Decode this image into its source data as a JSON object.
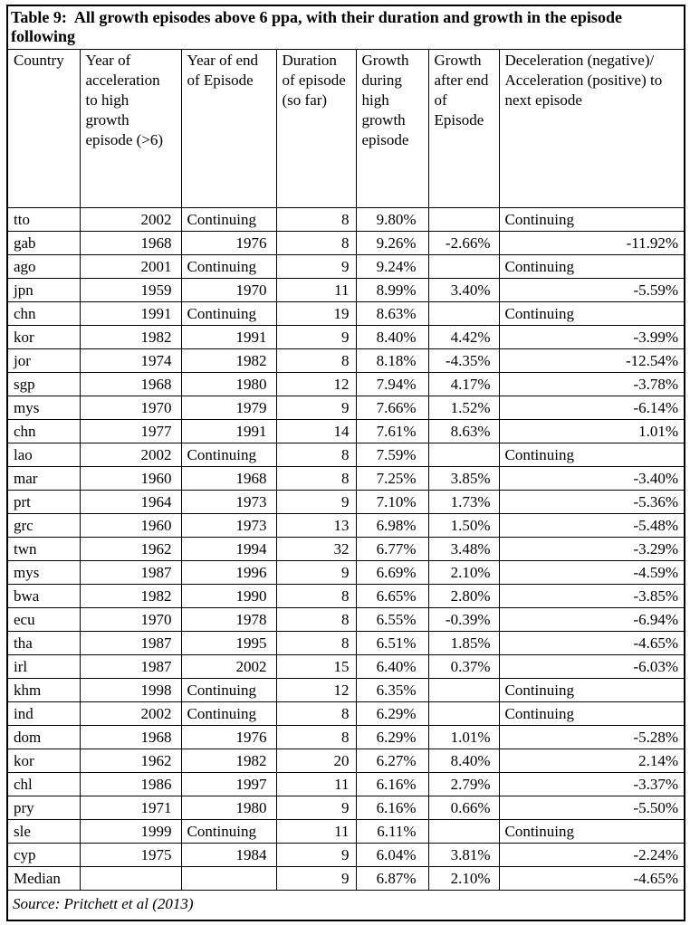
{
  "table": {
    "title": "Table 9:  All growth episodes above 6 ppa, with their duration and growth in the episode following",
    "columns": [
      "Country",
      "Year of acceleration to high growth episode (>6)",
      "Year of end of Episode",
      "Duration of episode (so far)",
      "Growth during high growth episode",
      "Growth after end of Episode",
      "Deceleration (negative)/ Acceleration (positive) to next episode"
    ],
    "rows": [
      [
        "tto",
        "2002",
        "Continuing",
        "8",
        "9.80%",
        "",
        "Continuing"
      ],
      [
        "gab",
        "1968",
        "1976",
        "8",
        "9.26%",
        "-2.66%",
        "-11.92%"
      ],
      [
        "ago",
        "2001",
        "Continuing",
        "9",
        "9.24%",
        "",
        "Continuing"
      ],
      [
        "jpn",
        "1959",
        "1970",
        "11",
        "8.99%",
        "3.40%",
        "-5.59%"
      ],
      [
        "chn",
        "1991",
        "Continuing",
        "19",
        "8.63%",
        "",
        "Continuing"
      ],
      [
        "kor",
        "1982",
        "1991",
        "9",
        "8.40%",
        "4.42%",
        "-3.99%"
      ],
      [
        "jor",
        "1974",
        "1982",
        "8",
        "8.18%",
        "-4.35%",
        "-12.54%"
      ],
      [
        "sgp",
        "1968",
        "1980",
        "12",
        "7.94%",
        "4.17%",
        "-3.78%"
      ],
      [
        "mys",
        "1970",
        "1979",
        "9",
        "7.66%",
        "1.52%",
        "-6.14%"
      ],
      [
        "chn",
        "1977",
        "1991",
        "14",
        "7.61%",
        "8.63%",
        "1.01%"
      ],
      [
        "lao",
        "2002",
        "Continuing",
        "8",
        "7.59%",
        "",
        "Continuing"
      ],
      [
        "mar",
        "1960",
        "1968",
        "8",
        "7.25%",
        "3.85%",
        "-3.40%"
      ],
      [
        "prt",
        "1964",
        "1973",
        "9",
        "7.10%",
        "1.73%",
        "-5.36%"
      ],
      [
        "grc",
        "1960",
        "1973",
        "13",
        "6.98%",
        "1.50%",
        "-5.48%"
      ],
      [
        "twn",
        "1962",
        "1994",
        "32",
        "6.77%",
        "3.48%",
        "-3.29%"
      ],
      [
        "mys",
        "1987",
        "1996",
        "9",
        "6.69%",
        "2.10%",
        "-4.59%"
      ],
      [
        "bwa",
        "1982",
        "1990",
        "8",
        "6.65%",
        "2.80%",
        "-3.85%"
      ],
      [
        "ecu",
        "1970",
        "1978",
        "8",
        "6.55%",
        "-0.39%",
        "-6.94%"
      ],
      [
        "tha",
        "1987",
        "1995",
        "8",
        "6.51%",
        "1.85%",
        "-4.65%"
      ],
      [
        "irl",
        "1987",
        "2002",
        "15",
        "6.40%",
        "0.37%",
        "-6.03%"
      ],
      [
        "khm",
        "1998",
        "Continuing",
        "12",
        "6.35%",
        "",
        "Continuing"
      ],
      [
        "ind",
        "2002",
        "Continuing",
        "8",
        "6.29%",
        "",
        "Continuing"
      ],
      [
        "dom",
        "1968",
        "1976",
        "8",
        "6.29%",
        "1.01%",
        "-5.28%"
      ],
      [
        "kor",
        "1962",
        "1982",
        "20",
        "6.27%",
        "8.40%",
        "2.14%"
      ],
      [
        "chl",
        "1986",
        "1997",
        "11",
        "6.16%",
        "2.79%",
        "-3.37%"
      ],
      [
        "pry",
        "1971",
        "1980",
        "9",
        "6.16%",
        "0.66%",
        "-5.50%"
      ],
      [
        "sle",
        "1999",
        "Continuing",
        "11",
        "6.11%",
        "",
        "Continuing"
      ],
      [
        "cyp",
        "1975",
        "1984",
        "9",
        "6.04%",
        "3.81%",
        "-2.24%"
      ],
      [
        "Median",
        "",
        "",
        "9",
        "6.87%",
        "2.10%",
        "-4.65%"
      ]
    ],
    "source": "Source: Pritchett et al (2013)"
  }
}
